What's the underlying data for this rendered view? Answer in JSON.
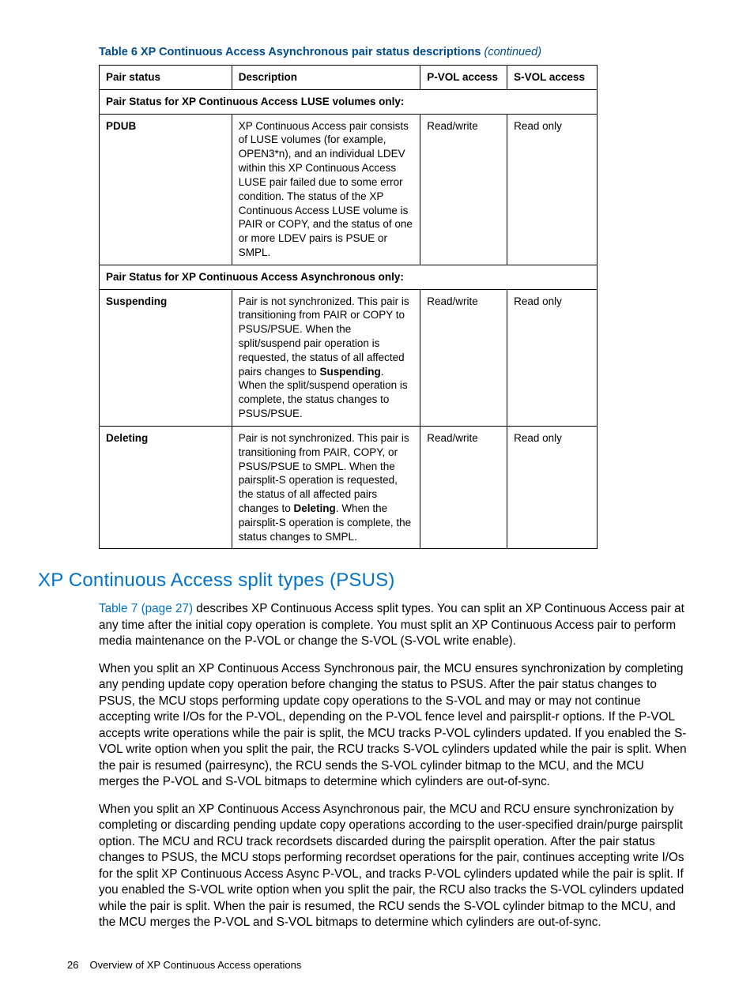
{
  "colors": {
    "heading_blue": "#0073cf",
    "caption_blue": "#004b8d",
    "text": "#000000",
    "border": "#000000",
    "background": "#ffffff"
  },
  "typography": {
    "body_fontsize_pt": 11.5,
    "caption_fontsize_pt": 11,
    "heading_fontsize_pt": 18,
    "footer_fontsize_pt": 10,
    "font_family": "Arial"
  },
  "table6": {
    "caption_prefix": "Table 6 XP Continuous Access Asynchronous pair status descriptions ",
    "caption_suffix": "(continued)",
    "headers": {
      "pair_status": "Pair status",
      "description": "Description",
      "pvol": "P-VOL access",
      "svol": "S-VOL access"
    },
    "section1_label": "Pair Status for XP Continuous Access LUSE volumes only:",
    "row_pdub": {
      "status": "PDUB",
      "desc": "XP Continuous Access pair consists of LUSE volumes (for example, OPEN3*n), and an individual LDEV within this XP Continuous Access LUSE pair failed due to some error condition. The status of the XP Continuous Access LUSE volume is PAIR or COPY, and the status of one or more LDEV pairs is PSUE or SMPL.",
      "pvol": "Read/write",
      "svol": "Read only"
    },
    "section2_label": "Pair Status for XP Continuous Access Asynchronous only:",
    "row_susp": {
      "status": "Suspending",
      "desc_a": "Pair is not synchronized. This pair is transitioning from PAIR or COPY to PSUS/PSUE. When the split/suspend pair operation is requested, the status of all affected pairs changes to ",
      "desc_bold": "Suspending",
      "desc_b": ". When the split/suspend operation is complete, the status changes to PSUS/PSUE.",
      "pvol": "Read/write",
      "svol": "Read only"
    },
    "row_del": {
      "status": "Deleting",
      "desc_a": "Pair is not synchronized. This pair is transitioning from PAIR, COPY, or PSUS/PSUE to SMPL. When the pairsplit-S operation is requested, the status of all affected pairs changes to ",
      "desc_bold": "Deleting",
      "desc_b": ". When the pairsplit-S operation is complete, the status changes to SMPL.",
      "pvol": "Read/write",
      "svol": "Read only"
    }
  },
  "heading": "XP Continuous Access split types (PSUS)",
  "para1": {
    "xref": "Table 7 (page 27)",
    "rest": " describes XP Continuous Access split types. You can split an XP Continuous Access pair at any time after the initial copy operation is complete. You must split an XP Continuous Access pair to perform media maintenance on the P-VOL or change the S-VOL (S-VOL write enable)."
  },
  "para2": "When you split an XP Continuous Access Synchronous pair, the MCU ensures synchronization by completing any pending update copy operation before changing the status to PSUS. After the pair status changes to PSUS, the MCU stops performing update copy operations to the S-VOL and may or may not continue accepting write I/Os for the P-VOL, depending on the P-VOL fence level and pairsplit-r options. If the P-VOL accepts write operations while the pair is split, the MCU tracks P-VOL cylinders updated. If you enabled the S-VOL write option when you split the pair, the RCU tracks S-VOL cylinders updated while the pair is split. When the pair is resumed (pairresync), the RCU sends the S-VOL cylinder bitmap to the MCU, and the MCU merges the P-VOL and S-VOL bitmaps to determine which cylinders are out-of-sync.",
  "para3": "When you split an XP Continuous Access Asynchronous pair, the MCU and RCU ensure synchronization by completing or discarding pending update copy operations according to the user-specified drain/purge pairsplit option. The MCU and RCU track recordsets discarded during the pairsplit operation. After the pair status changes to PSUS, the MCU stops performing recordset operations for the pair, continues accepting write I/Os for the split XP Continuous Access Async P-VOL, and tracks P-VOL cylinders updated while the pair is split. If you enabled the S-VOL write option when you split the pair, the RCU also tracks the S-VOL cylinders updated while the pair is split. When the pair is resumed, the RCU sends the S-VOL cylinder bitmap to the MCU, and the MCU merges the P-VOL and S-VOL bitmaps to determine which cylinders are out-of-sync.",
  "footer": {
    "page": "26",
    "title": "Overview of XP Continuous Access operations"
  }
}
